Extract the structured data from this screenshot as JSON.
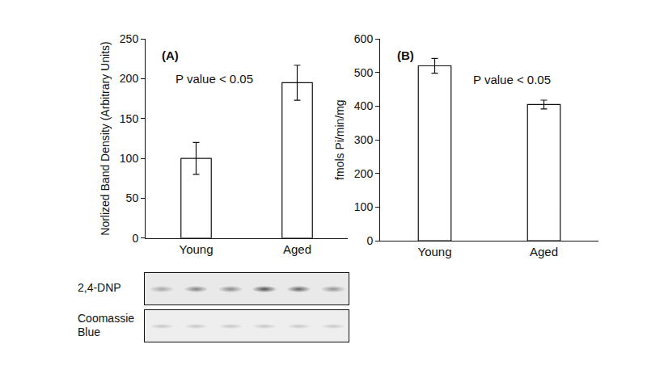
{
  "chart_data": [
    {
      "type": "bar",
      "categories": [
        "Young",
        "Aged"
      ],
      "values": [
        100,
        195
      ],
      "errors": [
        20,
        22
      ],
      "color": "#ffffff",
      "y_label": "Norlized Band Density (Arbitrary Units)",
      "annotations": [
        "(A)",
        "P value < 0.05"
      ],
      "ylim": [
        0,
        250
      ],
      "yticks": [
        0,
        50,
        100,
        150,
        200,
        250
      ],
      "grid": false
    },
    {
      "type": "bar",
      "categories": [
        "Young",
        "Aged"
      ],
      "values": [
        520,
        405
      ],
      "errors": [
        22,
        13
      ],
      "color": "#ffffff",
      "y_label": "fmols Pi/min/mg",
      "annotations": [
        "(B)",
        "P value < 0.05"
      ],
      "ylim": [
        0,
        600
      ],
      "yticks": [
        0,
        100,
        200,
        300,
        400,
        500,
        600
      ],
      "grid": false
    }
  ],
  "blot": {
    "rows": [
      "2,4-DNP",
      "Coomassie Blue"
    ]
  }
}
